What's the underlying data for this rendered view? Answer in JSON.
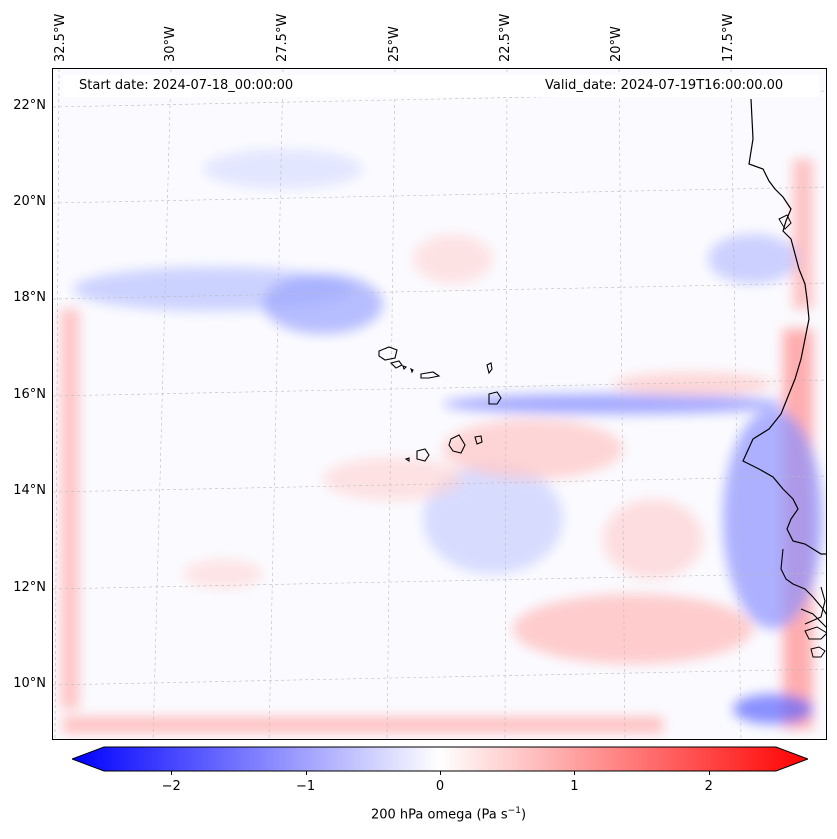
{
  "title_left": "Start date: 2024-07-18_00:00:00",
  "title_right": "Valid_date: 2024-07-19T16:00:00.00",
  "lon_labels": [
    "32.5°W",
    "30°W",
    "27.5°W",
    "25°W",
    "22.5°W",
    "20°W",
    "17.5°W"
  ],
  "lat_labels": [
    "22°N",
    "20°N",
    "18°N",
    "16°N",
    "14°N",
    "12°N",
    "10°N"
  ],
  "colorbar": {
    "ticks": [
      "−2",
      "−1",
      "0",
      "1",
      "2"
    ],
    "label_prefix": "200 hPa omega (Pa s",
    "label_exp": "−1",
    "label_suffix": ")",
    "range": [
      -2.6,
      2.6
    ],
    "colors": {
      "negative": "#0000ff",
      "zero": "#ffffff",
      "positive": "#ff0000"
    }
  },
  "map": {
    "variable": "200 hPa omega",
    "units": "Pa s-1",
    "region": "Cabo Verde and West African coast",
    "background": "#fbfbff",
    "coastline_color": "#000000",
    "gridline_color": "#bbbbbb"
  }
}
